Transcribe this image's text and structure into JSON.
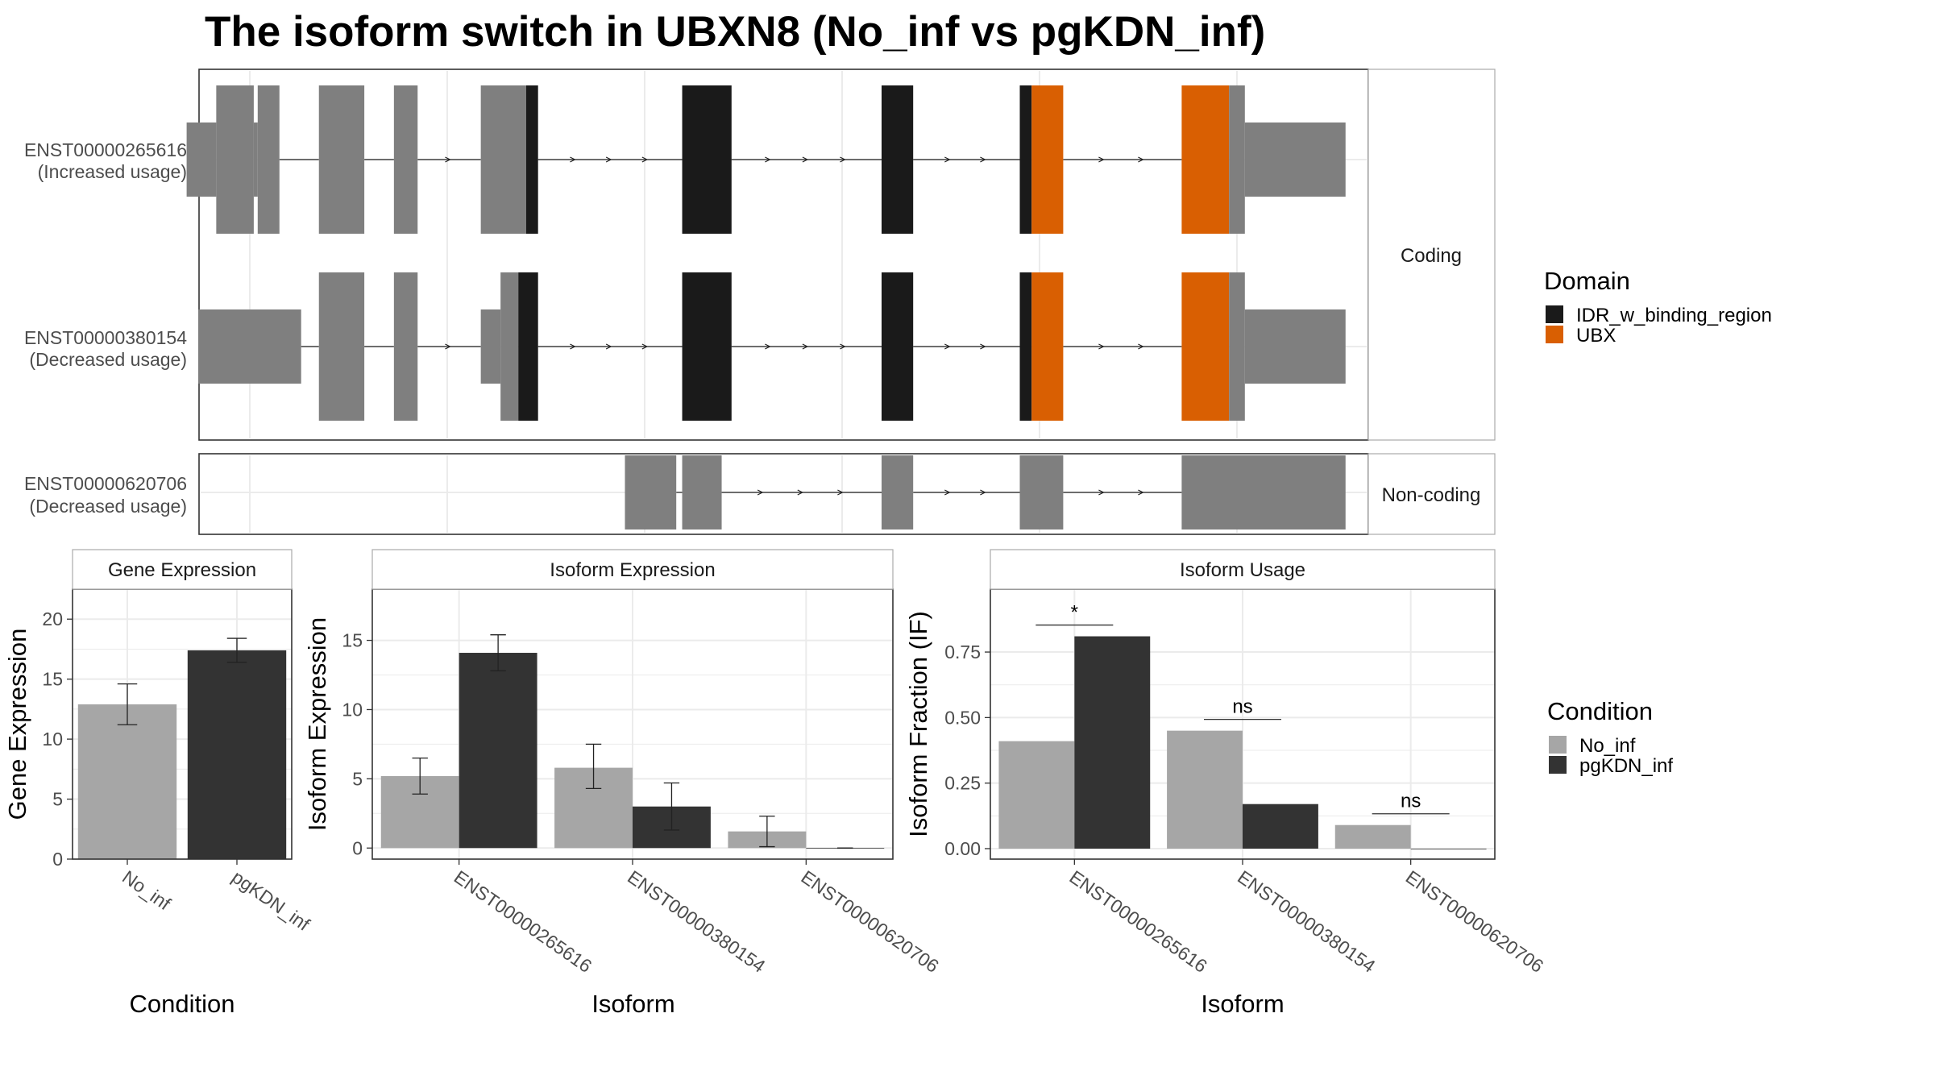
{
  "title": "The isoform switch in UBXN8 (No_inf vs pgKDN_inf)",
  "colors": {
    "exon": "#7f7f7f",
    "idr": "#1a1a1a",
    "ubx": "#d95f02",
    "no_inf": "#a6a6a6",
    "pgkdn_inf": "#333333",
    "grid": "#ebebeb",
    "panel_border": "#333333",
    "strip_border": "#aaaaaa"
  },
  "structure": {
    "facets": [
      "Coding",
      "Non-coding"
    ],
    "transcripts": [
      {
        "id": "ENST00000265616",
        "usage": "(Increased usage)",
        "facet": "Coding",
        "segments": [
          [
            268,
            283,
            "U"
          ],
          [
            283,
            302,
            "C"
          ],
          [
            302,
            304,
            "U"
          ],
          [
            304,
            315,
            "IN"
          ],
          [
            335,
            358,
            "C"
          ],
          [
            373,
            385,
            "C"
          ],
          [
            417,
            440,
            "C"
          ],
          [
            440,
            446,
            "IDR"
          ],
          [
            519,
            544,
            "IDR"
          ],
          [
            620,
            636,
            "IDR"
          ],
          [
            690,
            696,
            "IDR"
          ],
          [
            696,
            712,
            "UBX"
          ],
          [
            772,
            796,
            "UBX"
          ],
          [
            796,
            804,
            "C"
          ],
          [
            804,
            855,
            "U"
          ]
        ],
        "introns": [
          [
            315,
            335
          ],
          [
            358,
            373
          ],
          [
            385,
            417
          ],
          [
            446,
            519
          ],
          [
            544,
            620
          ],
          [
            636,
            690
          ],
          [
            712,
            772
          ]
        ]
      },
      {
        "id": "ENST00000380154",
        "usage": "(Decreased usage)",
        "facet": "Coding",
        "segments": [
          [
            274,
            326,
            "U"
          ],
          [
            335,
            358,
            "C"
          ],
          [
            373,
            385,
            "C"
          ],
          [
            417,
            427,
            "U"
          ],
          [
            427,
            436,
            "C"
          ],
          [
            436,
            446,
            "IDR"
          ],
          [
            519,
            544,
            "IDR"
          ],
          [
            620,
            636,
            "IDR"
          ],
          [
            690,
            696,
            "IDR"
          ],
          [
            696,
            712,
            "UBX"
          ],
          [
            772,
            796,
            "UBX"
          ],
          [
            796,
            804,
            "C"
          ],
          [
            804,
            855,
            "U"
          ]
        ],
        "introns": [
          [
            326,
            335
          ],
          [
            358,
            373
          ],
          [
            385,
            417
          ],
          [
            446,
            519
          ],
          [
            544,
            620
          ],
          [
            636,
            690
          ],
          [
            712,
            772
          ]
        ]
      },
      {
        "id": "ENST00000620706",
        "usage": "(Decreased usage)",
        "facet": "Non-coding",
        "segments": [
          [
            490,
            516,
            "N"
          ],
          [
            519,
            539,
            "N"
          ],
          [
            620,
            636,
            "N"
          ],
          [
            690,
            712,
            "N"
          ],
          [
            772,
            855,
            "N"
          ]
        ],
        "introns": [
          [
            516,
            519
          ],
          [
            539,
            620
          ],
          [
            636,
            690
          ],
          [
            712,
            772
          ]
        ]
      }
    ],
    "x_gridlines": [
      300,
      400,
      500,
      600,
      700,
      800
    ]
  },
  "legend_domain": {
    "title": "Domain",
    "items": [
      {
        "label": "IDR_w_binding_region",
        "color": "#1a1a1a"
      },
      {
        "label": "UBX",
        "color": "#d95f02"
      }
    ]
  },
  "legend_condition": {
    "title": "Condition",
    "items": [
      {
        "label": "No_inf",
        "color": "#a6a6a6"
      },
      {
        "label": "pgKDN_inf",
        "color": "#333333"
      }
    ]
  },
  "chart_data": [
    {
      "type": "bar",
      "title": "Gene Expression",
      "xlabel": "Condition",
      "ylabel": "Gene Expression",
      "categories": [
        "No_inf",
        "pgKDN_inf"
      ],
      "values": [
        12.9,
        17.4
      ],
      "errors": [
        [
          11.2,
          14.6
        ],
        [
          16.4,
          18.4
        ]
      ],
      "ylim": [
        0,
        22.5
      ],
      "yticks": [
        0,
        5,
        10,
        15,
        20
      ]
    },
    {
      "type": "bar",
      "title": "Isoform Expression",
      "xlabel": "Isoform",
      "ylabel": "Isoform Expression",
      "categories": [
        "ENST00000265616",
        "ENST00000380154",
        "ENST00000620706"
      ],
      "series": [
        {
          "name": "No_inf",
          "values": [
            5.2,
            5.8,
            1.2
          ],
          "errors": [
            [
              3.9,
              6.5
            ],
            [
              4.3,
              7.5
            ],
            [
              0.1,
              2.3
            ]
          ]
        },
        {
          "name": "pgKDN_inf",
          "values": [
            14.1,
            3.0,
            0.0
          ],
          "errors": [
            [
              12.8,
              15.4
            ],
            [
              1.3,
              4.7
            ],
            [
              0.0,
              0.0
            ]
          ]
        }
      ],
      "ylim": [
        -0.8,
        18.7
      ],
      "yticks": [
        0,
        5,
        10,
        15
      ]
    },
    {
      "type": "bar",
      "title": "Isoform Usage",
      "xlabel": "Isoform",
      "ylabel": "Isoform Fraction (IF)",
      "categories": [
        "ENST00000265616",
        "ENST00000380154",
        "ENST00000620706"
      ],
      "series": [
        {
          "name": "No_inf",
          "values": [
            0.41,
            0.45,
            0.09
          ]
        },
        {
          "name": "pgKDN_inf",
          "values": [
            0.81,
            0.17,
            0.0
          ]
        }
      ],
      "significance": [
        "*",
        "ns",
        "ns"
      ],
      "ylim": [
        -0.04,
        0.99
      ],
      "yticks": [
        0.0,
        0.25,
        0.5,
        0.75
      ],
      "ytick_labels": [
        "0.00",
        "0.25",
        "0.50",
        "0.75"
      ]
    }
  ]
}
